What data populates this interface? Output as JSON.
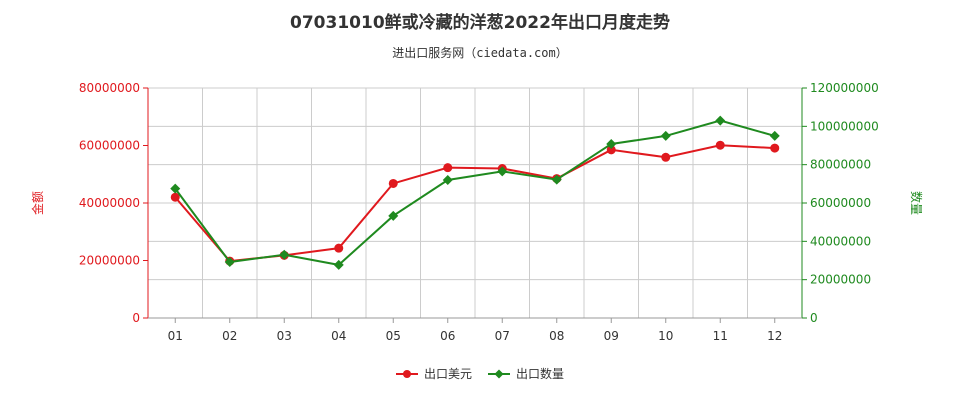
{
  "title": "07031010鲜或冷藏的洋葱2022年出口月度走势",
  "subtitle": "进出口服务网（ciedata.com）",
  "colors": {
    "export_value": "#e0191e",
    "export_quantity": "#1f8a1f",
    "grid": "#cccccc",
    "axis": "#999999"
  },
  "chart_data": {
    "type": "line",
    "categories": [
      "01",
      "02",
      "03",
      "04",
      "05",
      "06",
      "07",
      "08",
      "09",
      "10",
      "11",
      "12"
    ],
    "ylabel_left": "金额",
    "ylabel_right": "数量",
    "ylim_left": [
      0,
      80000000
    ],
    "ylim_right": [
      0,
      120000000
    ],
    "yticks_left": [
      "0",
      "20000000",
      "40000000",
      "60000000",
      "80000000"
    ],
    "yticks_right": [
      "0",
      "20000000",
      "40000000",
      "60000000",
      "80000000",
      "100000000",
      "120000000"
    ],
    "grid": true,
    "legend": "bottom-center",
    "series": [
      {
        "name": "出口美元",
        "axis": "left",
        "values": [
          42000000,
          19800000,
          21800000,
          24300000,
          46800000,
          52300000,
          52000000,
          48500000,
          58500000,
          55900000,
          60100000,
          59100000
        ]
      },
      {
        "name": "出口数量",
        "axis": "right",
        "values": [
          67500000,
          29200000,
          33000000,
          27700000,
          53300000,
          72000000,
          76500000,
          72200000,
          90800000,
          95000000,
          103000000,
          95000000
        ]
      }
    ]
  }
}
